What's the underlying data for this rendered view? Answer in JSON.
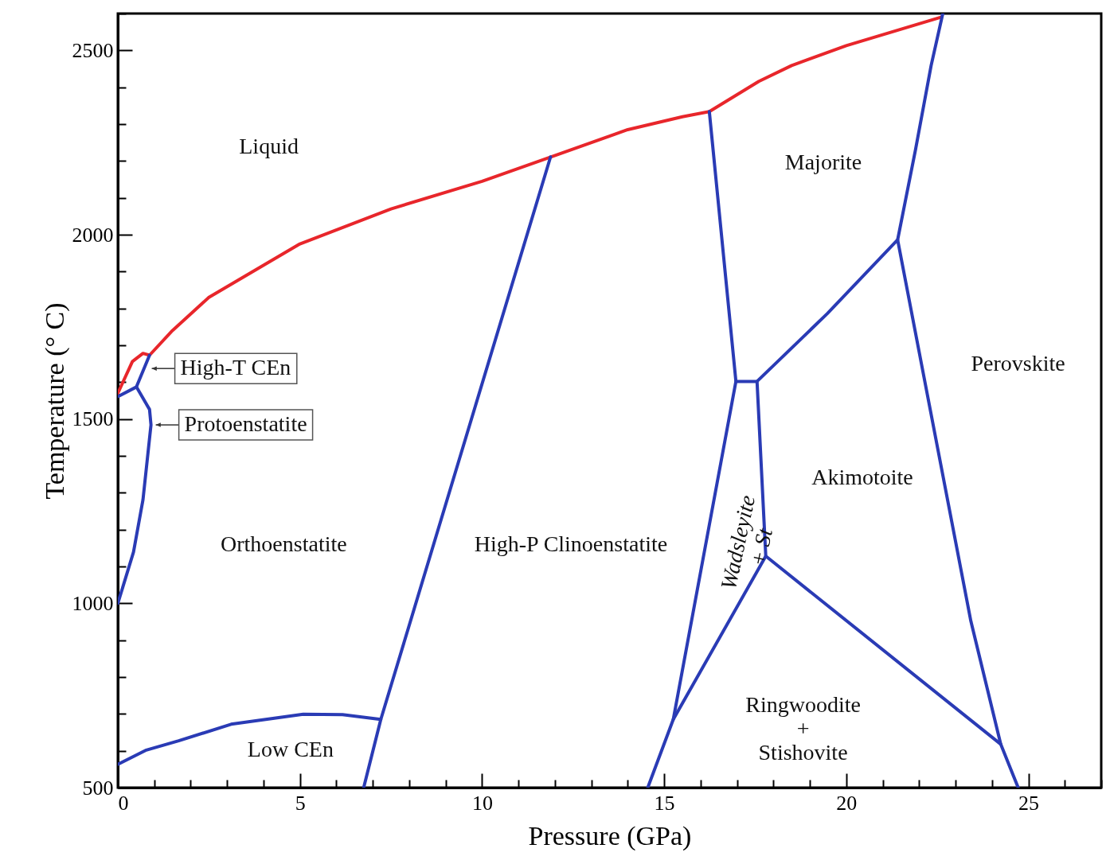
{
  "chart_data": {
    "type": "line",
    "xlabel": "Pressure (GPa)",
    "ylabel": "Temperature (° C)",
    "xlim": [
      0,
      27
    ],
    "ylim": [
      500,
      2600
    ],
    "xticks": [
      0,
      {
        "value": 1,
        "label": null
      },
      {
        "value": 2,
        "label": null
      },
      {
        "value": 3,
        "label": null
      },
      {
        "value": 4,
        "label": null
      },
      5,
      {
        "value": 6,
        "label": null
      },
      {
        "value": 7,
        "label": null
      },
      {
        "value": 8,
        "label": null
      },
      {
        "value": 9,
        "label": null
      },
      10,
      {
        "value": 11,
        "label": null
      },
      {
        "value": 12,
        "label": null
      },
      {
        "value": 13,
        "label": null
      },
      {
        "value": 14,
        "label": null
      },
      15,
      {
        "value": 16,
        "label": null
      },
      {
        "value": 17,
        "label": null
      },
      {
        "value": 18,
        "label": null
      },
      {
        "value": 19,
        "label": null
      },
      20,
      {
        "value": 21,
        "label": null
      },
      {
        "value": 22,
        "label": null
      },
      {
        "value": 23,
        "label": null
      },
      {
        "value": 24,
        "label": null
      },
      25,
      {
        "value": 26,
        "label": null
      },
      {
        "value": 27,
        "label": null
      }
    ],
    "yticks": [
      500,
      {
        "value": 600,
        "label": null
      },
      {
        "value": 700,
        "label": null
      },
      {
        "value": 800,
        "label": null
      },
      {
        "value": 900,
        "label": null
      },
      1000,
      {
        "value": 1100,
        "label": null
      },
      {
        "value": 1200,
        "label": null
      },
      {
        "value": 1300,
        "label": null
      },
      {
        "value": 1400,
        "label": null
      },
      1500,
      {
        "value": 1600,
        "label": null
      },
      {
        "value": 1700,
        "label": null
      },
      {
        "value": 1800,
        "label": null
      },
      {
        "value": 1900,
        "label": null
      },
      2000,
      {
        "value": 2100,
        "label": null
      },
      {
        "value": 2200,
        "label": null
      },
      {
        "value": 2300,
        "label": null
      },
      {
        "value": 2400,
        "label": null
      },
      2500,
      {
        "value": 2600,
        "label": null
      }
    ],
    "series": [
      {
        "color": "#e8262b",
        "x": [
          0,
          0.4,
          0.69,
          0.87,
          1.5,
          2.5,
          5,
          7.5,
          10,
          11.9,
          14,
          15.5,
          16.24,
          17.6,
          18.5,
          20,
          22.6
        ],
        "values": [
          1570,
          1656,
          1678,
          1673,
          1740,
          1830,
          1975,
          2070,
          2145,
          2211,
          2285,
          2320,
          2334,
          2416,
          2459,
          2513,
          2590
        ]
      },
      {
        "color": "#2a3bb5",
        "x": [
          0.87,
          0.51,
          0
        ],
        "values": [
          1673,
          1587,
          1561
        ]
      },
      {
        "color": "#2a3bb5",
        "x": [
          0.51,
          0.87,
          0.91,
          0.69,
          0.43,
          0
        ],
        "values": [
          1587,
          1526,
          1484,
          1281,
          1139,
          1000
        ]
      },
      {
        "color": "#2a3bb5",
        "x": [
          0,
          0.76,
          1.67,
          3.11,
          5.09,
          6.17,
          7.22
        ],
        "values": [
          563,
          601,
          627,
          672,
          699,
          698,
          685
        ]
      },
      {
        "color": "#2a3bb5",
        "x": [
          6.75,
          7.22,
          11.88
        ],
        "values": [
          500,
          685,
          2211
        ]
      },
      {
        "color": "#2a3bb5",
        "x": [
          16.24,
          16.97,
          15.25,
          14.55
        ],
        "values": [
          2334,
          1602,
          685,
          500
        ]
      },
      {
        "color": "#2a3bb5",
        "x": [
          16.97,
          17.55,
          19.48,
          21.41
        ],
        "values": [
          1602,
          1602,
          1786,
          1986
        ]
      },
      {
        "color": "#2a3bb5",
        "x": [
          22.65,
          22.33,
          21.9,
          21.41,
          23.42,
          24.24,
          24.72
        ],
        "values": [
          2600,
          2459,
          2230,
          1986,
          952,
          618,
          500
        ]
      },
      {
        "color": "#2a3bb5",
        "x": [
          17.55,
          17.79,
          24.24
        ],
        "values": [
          1602,
          1128,
          618
        ]
      },
      {
        "color": "#2a3bb5",
        "x": [
          17.79,
          15.25
        ],
        "values": [
          1128,
          685
        ]
      }
    ],
    "annotations": [
      "Liquid",
      "Majorite",
      "Perovskite",
      "Akimotoite",
      "Orthoenstatite",
      "High-P Clinoenstatite",
      "Wadsleyite\n+ St",
      "Ringwoodite\n+\nStishovite",
      "Low CEn",
      {
        "text": "High-T CEn",
        "x": 0.8,
        "y": 1637
      },
      {
        "text": "Protoenstatite",
        "x": 0.91,
        "y": 1484
      }
    ]
  }
}
